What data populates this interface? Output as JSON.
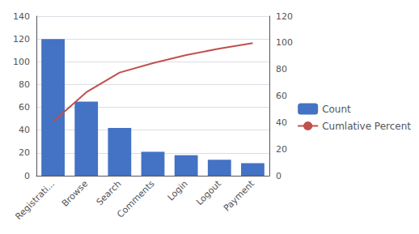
{
  "chart_data": {
    "type": "bar",
    "categories": [
      "Registrati...",
      "Browse",
      "Search",
      "Comments",
      "Login",
      "Logout",
      "Payment"
    ],
    "series": [
      {
        "name": "Count",
        "type": "bar",
        "color": "#4472C4",
        "values": [
          120,
          65,
          42,
          21,
          18,
          14,
          11
        ]
      },
      {
        "name": "Cumlative Percent",
        "type": "line",
        "color": "#C0504D",
        "axis": "y2",
        "marker": "none",
        "values": [
          40.7,
          62.8,
          77.6,
          84.7,
          90.8,
          95.6,
          99.7
        ]
      }
    ],
    "ylim": [
      0,
      140
    ],
    "yticks": [
      0,
      20,
      40,
      60,
      80,
      100,
      120,
      140
    ],
    "y2lim": [
      0,
      120
    ],
    "y2ticks": [
      0,
      20,
      40,
      60,
      80,
      100,
      120
    ],
    "grid": true,
    "legend": "right"
  }
}
